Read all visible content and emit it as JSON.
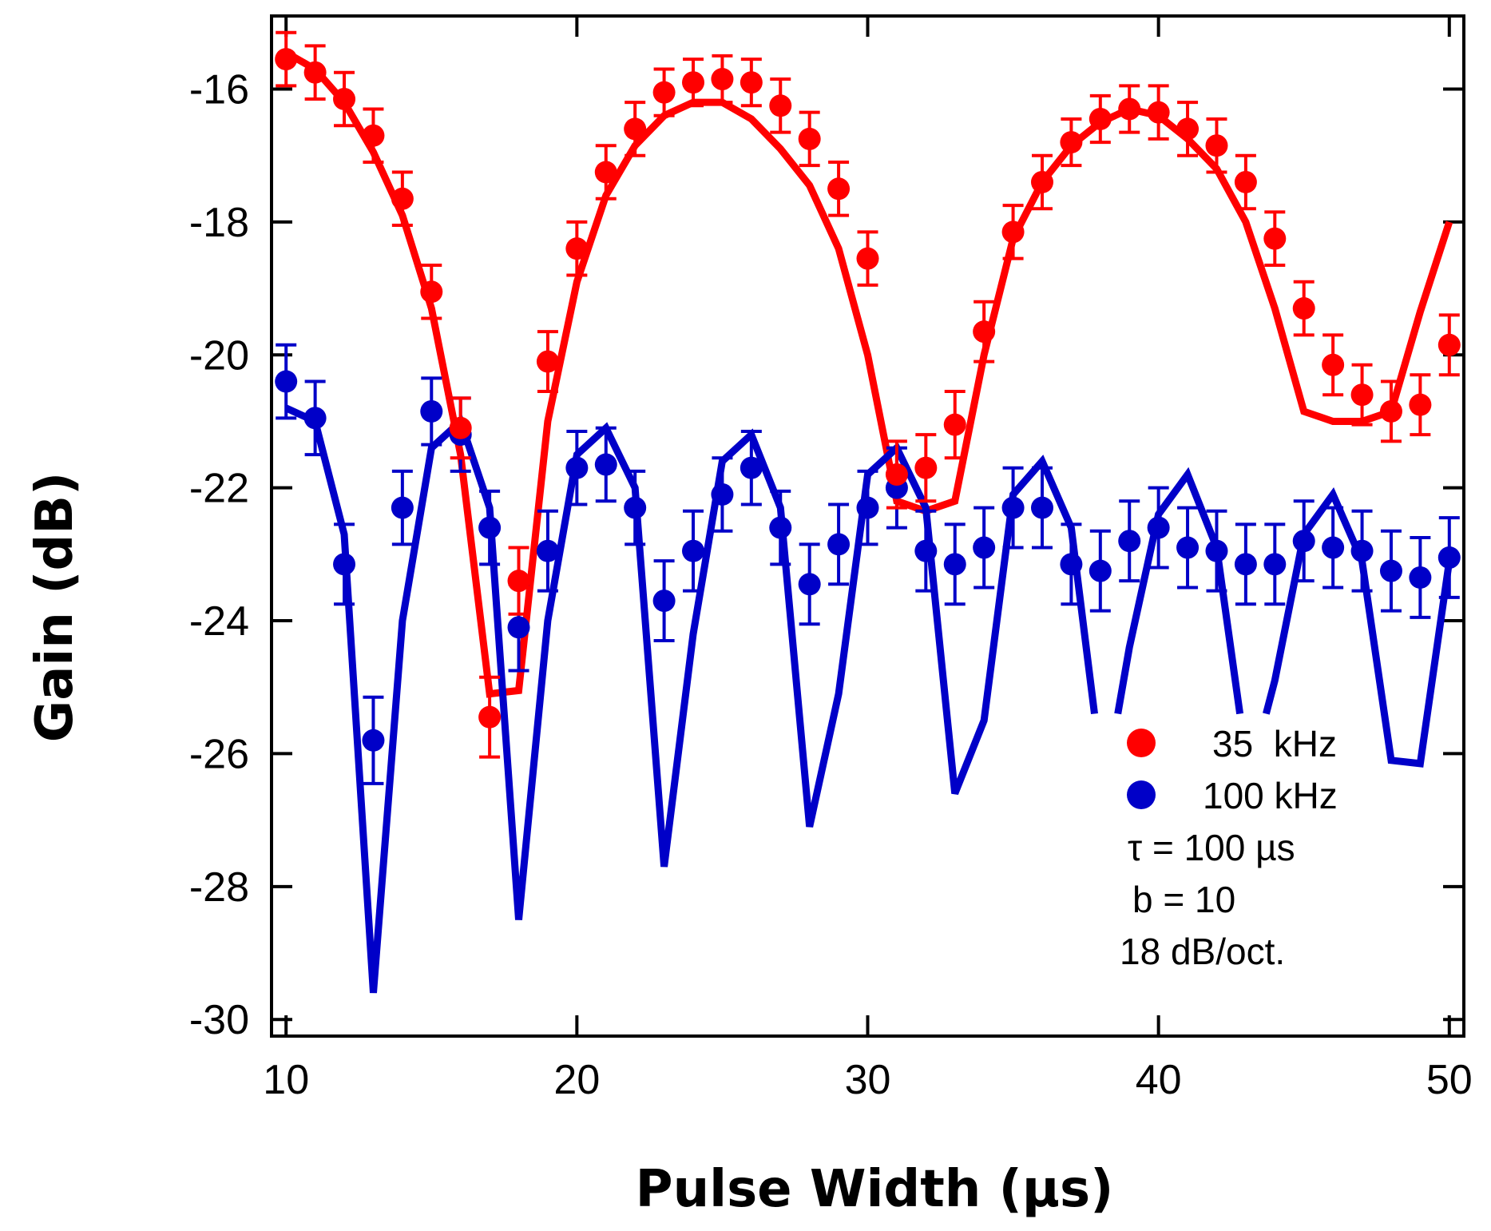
{
  "chart_data": {
    "type": "line",
    "title": "",
    "xlabel": "Pulse Width (µs)",
    "ylabel": "Gain (dB)",
    "xlim": [
      9.5,
      50.5
    ],
    "ylim": [
      -30.25,
      -14.9
    ],
    "xticks": [
      10,
      20,
      30,
      40,
      50
    ],
    "yticks": [
      -30,
      -28,
      -26,
      -24,
      -22,
      -20,
      -18,
      -16
    ],
    "xtick_labels": [
      "10",
      "20",
      "30",
      "40",
      "50"
    ],
    "ytick_labels": [
      "-30",
      "-28",
      "-26",
      "-24",
      "-22",
      "-20",
      "-18",
      "-16"
    ],
    "grid": false,
    "legend_position": "bottom-right",
    "series": [
      {
        "name": "35  kHz",
        "color": "#ff0000",
        "points_x": [
          10,
          11,
          12,
          13,
          14,
          15,
          16,
          17,
          18,
          19,
          20,
          21,
          22,
          23,
          24,
          25,
          26,
          27,
          28,
          29,
          30,
          31,
          32,
          33,
          34,
          35,
          36,
          37,
          38,
          39,
          40,
          41,
          42,
          43,
          44,
          45,
          46,
          47,
          48,
          49,
          50
        ],
        "points_y": [
          -15.55,
          -15.75,
          -16.15,
          -16.7,
          -17.65,
          -19.05,
          -21.1,
          -25.45,
          -23.4,
          -20.1,
          -18.4,
          -17.25,
          -16.6,
          -16.05,
          -15.9,
          -15.85,
          -15.9,
          -16.25,
          -16.75,
          -17.5,
          -18.55,
          -21.8,
          -21.7,
          -21.05,
          -19.65,
          -18.15,
          -17.4,
          -16.8,
          -16.45,
          -16.3,
          -16.35,
          -16.6,
          -16.85,
          -17.4,
          -18.25,
          -19.3,
          -20.15,
          -20.6,
          -20.85,
          -20.75,
          -19.85
        ],
        "error": [
          0.4,
          0.4,
          0.4,
          0.4,
          0.4,
          0.4,
          0.45,
          0.6,
          0.5,
          0.45,
          0.4,
          0.4,
          0.4,
          0.35,
          0.35,
          0.35,
          0.35,
          0.4,
          0.4,
          0.4,
          0.4,
          0.5,
          0.5,
          0.5,
          0.45,
          0.4,
          0.4,
          0.35,
          0.35,
          0.35,
          0.4,
          0.4,
          0.4,
          0.4,
          0.4,
          0.4,
          0.45,
          0.45,
          0.45,
          0.45,
          0.45
        ],
        "fit_x": [
          10,
          11,
          12,
          13,
          14,
          15,
          16,
          17,
          18,
          19,
          20,
          21,
          22,
          23,
          24,
          25,
          26,
          27,
          28,
          29,
          30,
          31,
          32,
          33,
          34,
          35,
          36,
          37,
          38,
          39,
          40,
          41,
          42,
          43,
          44,
          45,
          46,
          47,
          48,
          49,
          50
        ],
        "fit_y": [
          -15.45,
          -15.7,
          -16.2,
          -16.95,
          -17.9,
          -19.3,
          -21.5,
          -25.1,
          -25.05,
          -21.0,
          -18.9,
          -17.6,
          -16.85,
          -16.4,
          -16.2,
          -16.2,
          -16.45,
          -16.9,
          -17.45,
          -18.4,
          -20.0,
          -22.2,
          -22.35,
          -22.2,
          -20.0,
          -18.25,
          -17.4,
          -16.85,
          -16.5,
          -16.3,
          -16.4,
          -16.75,
          -17.2,
          -18.0,
          -19.3,
          -20.85,
          -21.0,
          -21.0,
          -20.85,
          -19.35,
          -18.0
        ]
      },
      {
        "name": "100 kHz",
        "color": "#0000c8",
        "points_x": [
          10,
          11,
          12,
          13,
          14,
          15,
          16,
          17,
          18,
          19,
          20,
          21,
          22,
          23,
          24,
          25,
          26,
          27,
          28,
          29,
          30,
          31,
          32,
          33,
          34,
          35,
          36,
          37,
          38,
          39,
          40,
          41,
          42,
          43,
          44,
          45,
          46,
          47,
          48,
          49,
          50
        ],
        "points_y": [
          -20.4,
          -20.95,
          -23.15,
          -25.8,
          -22.3,
          -20.85,
          -21.2,
          -22.6,
          -24.1,
          -22.95,
          -21.7,
          -21.65,
          -22.3,
          -23.7,
          -22.95,
          -22.1,
          -21.7,
          -22.6,
          -23.45,
          -22.85,
          -22.3,
          -22.0,
          -22.95,
          -23.15,
          -22.9,
          -22.3,
          -22.3,
          -23.15,
          -23.25,
          -22.8,
          -22.6,
          -22.9,
          -22.95,
          -23.15,
          -23.15,
          -22.8,
          -22.9,
          -22.95,
          -23.25,
          -23.35,
          -23.05
        ],
        "error": [
          0.55,
          0.55,
          0.6,
          0.65,
          0.55,
          0.5,
          0.55,
          0.55,
          0.65,
          0.6,
          0.55,
          0.55,
          0.55,
          0.6,
          0.6,
          0.55,
          0.55,
          0.55,
          0.6,
          0.6,
          0.55,
          0.6,
          0.6,
          0.6,
          0.6,
          0.6,
          0.6,
          0.6,
          0.6,
          0.6,
          0.6,
          0.6,
          0.6,
          0.6,
          0.6,
          0.6,
          0.6,
          0.6,
          0.6,
          0.6,
          0.6
        ],
        "fit_segments": [
          {
            "x": [
              10,
              11,
              12,
              13,
              14,
              15,
              16,
              17,
              18,
              19,
              20,
              21,
              22,
              23,
              24,
              25,
              26,
              27,
              28,
              29,
              30,
              31,
              32,
              33,
              34,
              35,
              36,
              37,
              37.8
            ],
            "y": [
              -20.8,
              -21.0,
              -22.7,
              -29.6,
              -24.0,
              -21.4,
              -21.0,
              -22.3,
              -28.5,
              -24.0,
              -21.5,
              -21.1,
              -22.0,
              -27.7,
              -24.2,
              -21.6,
              -21.2,
              -22.3,
              -27.1,
              -25.1,
              -21.8,
              -21.4,
              -22.3,
              -26.6,
              -25.5,
              -22.1,
              -21.6,
              -22.6,
              -25.4
            ]
          },
          {
            "x": [
              38.6,
              39,
              40,
              41,
              42,
              42.8
            ],
            "y": [
              -25.4,
              -24.4,
              -22.4,
              -21.8,
              -22.9,
              -25.4
            ]
          },
          {
            "x": [
              43.7,
              44,
              45,
              46,
              47,
              48,
              49,
              50
            ],
            "y": [
              -25.4,
              -24.9,
              -22.7,
              -22.1,
              -23.1,
              -26.1,
              -26.15,
              -23.1
            ]
          }
        ]
      }
    ],
    "annotations": [
      "τ = 100 µs",
      "b = 10",
      "18 dB/oct."
    ]
  }
}
